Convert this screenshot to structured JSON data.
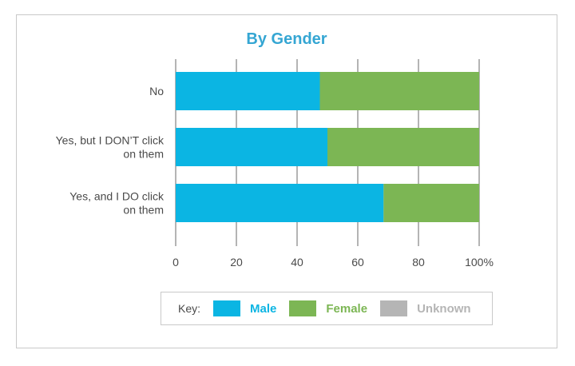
{
  "chart_data": {
    "type": "bar",
    "orientation": "horizontal",
    "stacked": true,
    "title": "By Gender",
    "categories": [
      "No",
      "Yes, but I DON’T click on them",
      "Yes, and I DO click on them"
    ],
    "category_lines": [
      [
        "No"
      ],
      [
        "Yes, but I DON’T click",
        "on them"
      ],
      [
        "Yes, and I DO click",
        "on them"
      ]
    ],
    "series": [
      {
        "name": "Male",
        "color": "#0bb5e3",
        "values": [
          47.5,
          50,
          68.5
        ]
      },
      {
        "name": "Female",
        "color": "#7cb654",
        "values": [
          52.5,
          50,
          31.5
        ]
      },
      {
        "name": "Unknown",
        "color": "#b5b5b5",
        "values": [
          0,
          0,
          0
        ]
      }
    ],
    "xlim": [
      0,
      100
    ],
    "x_ticks": [
      0,
      20,
      40,
      60,
      80,
      100
    ],
    "x_tick_labels": [
      "0",
      "20",
      "40",
      "60",
      "80",
      "100%"
    ],
    "xlabel": "",
    "ylabel": "",
    "grid": true,
    "legend": {
      "position": "bottom",
      "key_label": "Key:",
      "label_colors": [
        "#0bb5e3",
        "#7cb654",
        "#b5b5b5"
      ]
    }
  }
}
